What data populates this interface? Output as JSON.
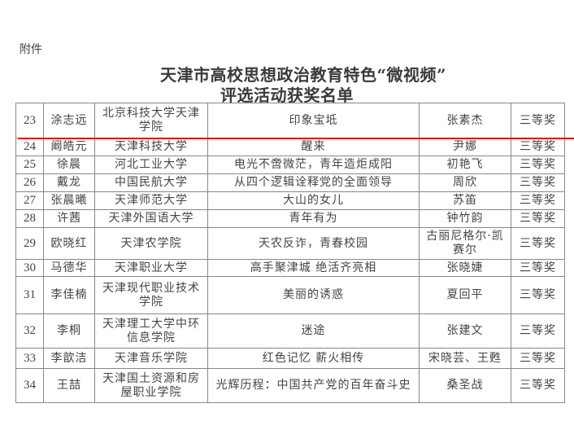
{
  "header": {
    "attachment_label": "附件",
    "title_line1": "天津市高校思想政治教育特色“微视频”",
    "title_line2": "评选活动获奖名单"
  },
  "accent_color": "#e0101a",
  "rows": [
    {
      "no": "23",
      "author": "涂志远",
      "school": "北京科技大学天津学院",
      "work": "印象宝坻",
      "advisor": "张素杰",
      "award": "三等奖"
    },
    {
      "no": "24",
      "author": "阚皓元",
      "school": "天津科技大学",
      "work": "醒来",
      "advisor": "尹娜",
      "award": "三等奖"
    },
    {
      "no": "25",
      "author": "徐晨",
      "school": "河北工业大学",
      "work": "电光不啻微茫，青年造炬成阳",
      "advisor": "初艳飞",
      "award": "三等奖"
    },
    {
      "no": "26",
      "author": "戴龙",
      "school": "中国民航大学",
      "work": "从四个逻辑诠释党的全面领导",
      "advisor": "周欣",
      "award": "三等奖"
    },
    {
      "no": "27",
      "author": "张晨曦",
      "school": "天津师范大学",
      "work": "大山的女儿",
      "advisor": "苏笛",
      "award": "三等奖"
    },
    {
      "no": "28",
      "author": "许茜",
      "school": "天津外国语大学",
      "work": "青年有为",
      "advisor": "钟竹韵",
      "award": "三等奖"
    },
    {
      "no": "29",
      "author": "欧晓红",
      "school": "天津农学院",
      "work": "天农反诈，青春校园",
      "advisor": "古丽尼格尔·凯赛尔",
      "award": "三等奖"
    },
    {
      "no": "30",
      "author": "马德华",
      "school": "天津职业大学",
      "work": "高手聚津城 绝活齐亮相",
      "advisor": "张晓婕",
      "award": "三等奖"
    },
    {
      "no": "31",
      "author": "李佳楠",
      "school": "天津现代职业技术学院",
      "work": "美丽的诱惑",
      "advisor": "夏回平",
      "award": "三等奖"
    },
    {
      "no": "32",
      "author": "李桐",
      "school": "天津理工大学中环信息学院",
      "work": "迷途",
      "advisor": "张建文",
      "award": "三等奖"
    },
    {
      "no": "33",
      "author": "李歆洁",
      "school": "天津音乐学院",
      "work": "红色记忆 薪火相传",
      "advisor": "宋晓芸、王甦",
      "award": "三等奖"
    },
    {
      "no": "34",
      "author": "王喆",
      "school": "天津国土资源和房屋职业学院",
      "work": "光辉历程：中国共产党的百年奋斗史",
      "advisor": "桑圣战",
      "award": "三等奖"
    }
  ]
}
